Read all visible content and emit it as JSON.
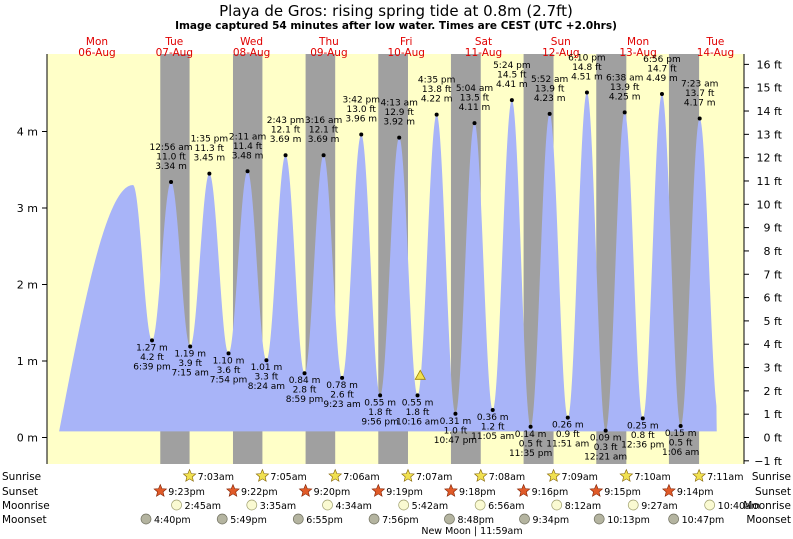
{
  "chart_data": {
    "type": "area",
    "title": "Playa de Gros: rising  spring tide at 0.8m (2.7ft)",
    "subtitle": "Image captured 54 minutes after low water. Times are CEST (UTC +2.0hrs)",
    "x_range_hours": [
      -16,
      214
    ],
    "y_left": {
      "unit": "m",
      "ticks": [
        "0 m",
        "1 m",
        "2 m",
        "3 m",
        "4 m"
      ],
      "values": [
        0,
        1,
        2,
        3,
        4
      ]
    },
    "y_right": {
      "unit": "ft",
      "ticks": [
        "−1 ft",
        "0 ft",
        "1 ft",
        "2 ft",
        "3 ft",
        "4 ft",
        "5 ft",
        "6 ft",
        "7 ft",
        "8 ft",
        "9 ft",
        "10 ft",
        "11 ft",
        "12 ft",
        "13 ft",
        "14 ft",
        "15 ft",
        "16 ft"
      ],
      "values": [
        -1,
        0,
        1,
        2,
        3,
        4,
        5,
        6,
        7,
        8,
        9,
        10,
        11,
        12,
        13,
        14,
        15,
        16
      ]
    },
    "days": [
      {
        "dow": "Mon",
        "date": "06-Aug"
      },
      {
        "dow": "Tue",
        "date": "07-Aug"
      },
      {
        "dow": "Wed",
        "date": "08-Aug"
      },
      {
        "dow": "Thu",
        "date": "09-Aug"
      },
      {
        "dow": "Fri",
        "date": "10-Aug"
      },
      {
        "dow": "Sat",
        "date": "11-Aug"
      },
      {
        "dow": "Sun",
        "date": "12-Aug"
      },
      {
        "dow": "Mon",
        "date": "13-Aug"
      },
      {
        "dow": "Tue",
        "date": "14-Aug"
      }
    ],
    "nights": [
      {
        "start": 21.38,
        "end": 31.05
      },
      {
        "start": 45.37,
        "end": 55.08
      },
      {
        "start": 69.33,
        "end": 79.1
      },
      {
        "start": 93.32,
        "end": 103.12
      },
      {
        "start": 117.3,
        "end": 127.13
      },
      {
        "start": 141.27,
        "end": 151.15
      },
      {
        "start": 165.25,
        "end": 175.17
      },
      {
        "start": 189.23,
        "end": 199.18
      }
    ],
    "start_level_m": 3.3,
    "extremes": [
      {
        "t": 18.65,
        "m": 1.27,
        "ft": "4.2 ft",
        "time": "6:39 pm",
        "type": "low"
      },
      {
        "t": 24.93,
        "m": 3.34,
        "ft": "11.0 ft",
        "time": "12:56 am",
        "type": "high"
      },
      {
        "t": 31.25,
        "m": 1.19,
        "ft": "3.9 ft",
        "time": "7:15 am",
        "type": "low"
      },
      {
        "t": 37.58,
        "m": 3.45,
        "ft": "11.3 ft",
        "time": "1:35 pm",
        "type": "high"
      },
      {
        "t": 43.9,
        "m": 1.1,
        "ft": "3.6 ft",
        "time": "7:54 pm",
        "type": "low"
      },
      {
        "t": 50.18,
        "m": 3.48,
        "ft": "11.4 ft",
        "time": "2:11 am",
        "type": "high"
      },
      {
        "t": 56.4,
        "m": 1.01,
        "ft": "3.3 ft",
        "time": "8:24 am",
        "type": "low"
      },
      {
        "t": 62.72,
        "m": 3.69,
        "ft": "12.1 ft",
        "time": "2:43 pm",
        "type": "high"
      },
      {
        "t": 68.98,
        "m": 0.84,
        "ft": "2.8 ft",
        "time": "8:59 pm",
        "type": "low"
      },
      {
        "t": 75.27,
        "m": 3.69,
        "ft": "12.1 ft",
        "time": "3:16 am",
        "type": "high"
      },
      {
        "t": 81.38,
        "m": 0.78,
        "ft": "2.6 ft",
        "time": "9:23 am",
        "type": "low"
      },
      {
        "t": 87.7,
        "m": 3.96,
        "ft": "13.0 ft",
        "time": "3:42 pm",
        "type": "high"
      },
      {
        "t": 93.93,
        "m": 0.55,
        "ft": "1.8 ft",
        "time": "9:56 pm",
        "type": "low"
      },
      {
        "t": 100.22,
        "m": 3.92,
        "ft": "12.9 ft",
        "time": "4:13 am",
        "type": "high"
      },
      {
        "t": 106.27,
        "m": 0.55,
        "ft": "1.8 ft",
        "time": "10:16 am",
        "type": "low"
      },
      {
        "t": 112.58,
        "m": 4.22,
        "ft": "13.8 ft",
        "time": "4:35 pm",
        "type": "high"
      },
      {
        "t": 118.78,
        "m": 0.31,
        "ft": "1.0 ft",
        "time": "10:47 pm",
        "type": "low"
      },
      {
        "t": 125.07,
        "m": 4.11,
        "ft": "13.5 ft",
        "time": "5:04 am",
        "type": "high"
      },
      {
        "t": 131.08,
        "m": 0.36,
        "ft": "1.2 ft",
        "time": "11:05 am",
        "type": "low"
      },
      {
        "t": 137.4,
        "m": 4.41,
        "ft": "14.5 ft",
        "time": "5:24 pm",
        "type": "high"
      },
      {
        "t": 143.58,
        "m": 0.14,
        "ft": "0.5 ft",
        "time": "11:35 pm",
        "type": "low"
      },
      {
        "t": 149.87,
        "m": 4.23,
        "ft": "13.9 ft",
        "time": "5:52 am",
        "type": "high"
      },
      {
        "t": 155.85,
        "m": 0.26,
        "ft": "0.9 ft",
        "time": "11:51 am",
        "type": "low"
      },
      {
        "t": 162.17,
        "m": 4.51,
        "ft": "14.8 ft",
        "time": "6:10 pm",
        "type": "high"
      },
      {
        "t": 168.35,
        "m": 0.09,
        "ft": "0.3 ft",
        "time": "12:21 am",
        "type": "low"
      },
      {
        "t": 174.63,
        "m": 4.25,
        "ft": "13.9 ft",
        "time": "6:38 am",
        "type": "high"
      },
      {
        "t": 180.6,
        "m": 0.25,
        "ft": "0.8 ft",
        "time": "12:36 pm",
        "type": "low"
      },
      {
        "t": 186.93,
        "m": 4.49,
        "ft": "14.7 ft",
        "time": "6:56 pm",
        "type": "high"
      },
      {
        "t": 193.1,
        "m": 0.15,
        "ft": "0.5 ft",
        "time": "1:06 am",
        "type": "low"
      },
      {
        "t": 199.38,
        "m": 4.17,
        "ft": "13.7 ft",
        "time": "7:23 am",
        "type": "high"
      }
    ],
    "current": {
      "t": 107.17,
      "m": 0.8
    },
    "rows": {
      "labels": [
        "Sunrise",
        "Sunset",
        "Moonrise",
        "Moonset"
      ],
      "sunrise": [
        {
          "t": 31.05,
          "time": "7:03am"
        },
        {
          "t": 55.08,
          "time": "7:05am"
        },
        {
          "t": 79.1,
          "time": "7:06am"
        },
        {
          "t": 103.12,
          "time": "7:07am"
        },
        {
          "t": 127.13,
          "time": "7:08am"
        },
        {
          "t": 151.15,
          "time": "7:09am"
        },
        {
          "t": 175.17,
          "time": "7:10am"
        },
        {
          "t": 199.18,
          "time": "7:11am"
        }
      ],
      "sunset": [
        {
          "t": 21.38,
          "time": "9:23pm"
        },
        {
          "t": 45.37,
          "time": "9:22pm"
        },
        {
          "t": 69.33,
          "time": "9:20pm"
        },
        {
          "t": 93.32,
          "time": "9:19pm"
        },
        {
          "t": 117.3,
          "time": "9:18pm"
        },
        {
          "t": 141.27,
          "time": "9:16pm"
        },
        {
          "t": 165.25,
          "time": "9:15pm"
        },
        {
          "t": 189.23,
          "time": "9:14pm"
        }
      ],
      "moonrise": [
        {
          "t": 26.75,
          "time": "2:45am"
        },
        {
          "t": 51.58,
          "time": "3:35am"
        },
        {
          "t": 76.57,
          "time": "4:34am"
        },
        {
          "t": 101.7,
          "time": "5:42am"
        },
        {
          "t": 126.93,
          "time": "6:56am"
        },
        {
          "t": 152.2,
          "time": "8:12am"
        },
        {
          "t": 177.45,
          "time": "9:27am"
        },
        {
          "t": 202.67,
          "time": "10:40am"
        }
      ],
      "moonset": [
        {
          "t": 16.67,
          "time": "4:40pm"
        },
        {
          "t": 41.82,
          "time": "5:49pm"
        },
        {
          "t": 66.92,
          "time": "6:55pm"
        },
        {
          "t": 91.93,
          "time": "7:56pm"
        },
        {
          "t": 116.8,
          "time": "8:48pm"
        },
        {
          "t": 141.57,
          "time": "9:34pm"
        },
        {
          "t": 166.22,
          "time": "10:13pm"
        },
        {
          "t": 190.78,
          "time": "10:47pm"
        }
      ],
      "new_moon_note": "New Moon | 11:59am"
    },
    "colors": {
      "day": "#ffffc8",
      "night": "#a0a0a0",
      "water": "#a8b4f8",
      "day_label": "#e00000",
      "sun_rise": "#f0e050",
      "sun_set": "#e05a28",
      "moon": "#fafad2",
      "moonset_fill": "#b4b4a0"
    }
  }
}
